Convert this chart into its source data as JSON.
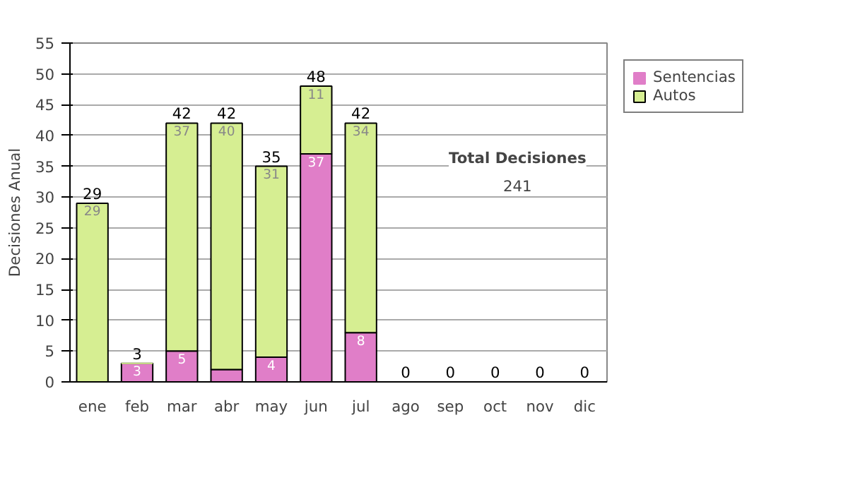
{
  "chart_data": {
    "type": "bar",
    "stacked": true,
    "ylabel": "Decisiones Anual",
    "categories": [
      "ene",
      "feb",
      "mar",
      "abr",
      "may",
      "jun",
      "jul",
      "ago",
      "sep",
      "oct",
      "nov",
      "dic"
    ],
    "series": [
      {
        "name": "Sentencias",
        "color": "#e07ec8",
        "values": [
          0,
          3,
          5,
          2,
          4,
          37,
          8,
          0,
          0,
          0,
          0,
          0
        ],
        "value_labels": [
          null,
          "3",
          "5",
          null,
          "4",
          "37",
          "8",
          null,
          null,
          null,
          null,
          null
        ]
      },
      {
        "name": "Autos",
        "color": "#d6ee92",
        "values": [
          29,
          0,
          37,
          40,
          31,
          11,
          34,
          0,
          0,
          0,
          0,
          0
        ],
        "value_labels": [
          "29",
          null,
          "37",
          "40",
          "31",
          "11",
          "34",
          null,
          null,
          null,
          null,
          null
        ]
      }
    ],
    "totals": [
      "29",
      "3",
      "42",
      "42",
      "35",
      "48",
      "42",
      "0",
      "0",
      "0",
      "0",
      "0"
    ],
    "ylim": [
      0,
      55
    ],
    "yticks": [
      0,
      5,
      10,
      15,
      20,
      25,
      30,
      35,
      40,
      45,
      50,
      55
    ],
    "grid": "y",
    "legend": "right",
    "annotations": [
      "Total Decisiones",
      "241"
    ]
  }
}
